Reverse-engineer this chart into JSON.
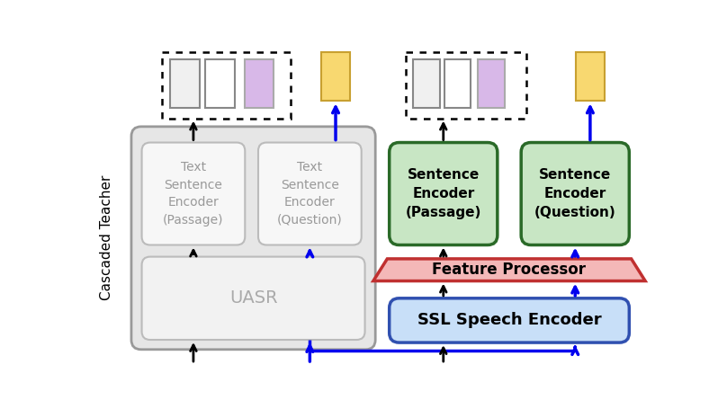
{
  "bg_color": "#ffffff",
  "cascaded_teacher_label": "Cascaded Teacher",
  "uasr_label": "UASR",
  "text_enc_passage_label": "Text\nSentence\nEncoder\n(Passage)",
  "text_enc_question_label": "Text\nSentence\nEncoder\n(Question)",
  "sent_enc_passage_label": "Sentence\nEncoder\n(Passage)",
  "sent_enc_question_label": "Sentence\nEncoder\n(Question)",
  "feature_proc_label": "Feature Processor",
  "ssl_enc_label": "SSL Speech Encoder",
  "gray_bg": "#e6e6e6",
  "uasr_bg": "#f2f2f2",
  "text_enc_bg": "#f7f7f7",
  "text_enc_border": "#bbbbbb",
  "green_box_bg": "#c8e6c4",
  "green_box_border": "#2a6a28",
  "pink_box_bg": "#f4b8b8",
  "pink_box_border": "#c03030",
  "blue_box_bg": "#c8dff8",
  "blue_box_border": "#3050b0",
  "black_arrow": "#000000",
  "blue_arrow": "#0000ee",
  "white_rect_bg": "#f0f0f0",
  "white_rect_bg2": "#ffffff",
  "purple_rect": "#d8b8e8",
  "yellow_rect": "#f8d870",
  "yellow_rect_border": "#c8a030",
  "dotted_border": "#000000",
  "ct_border": "#999999",
  "uasr_border": "#bbbbbb"
}
